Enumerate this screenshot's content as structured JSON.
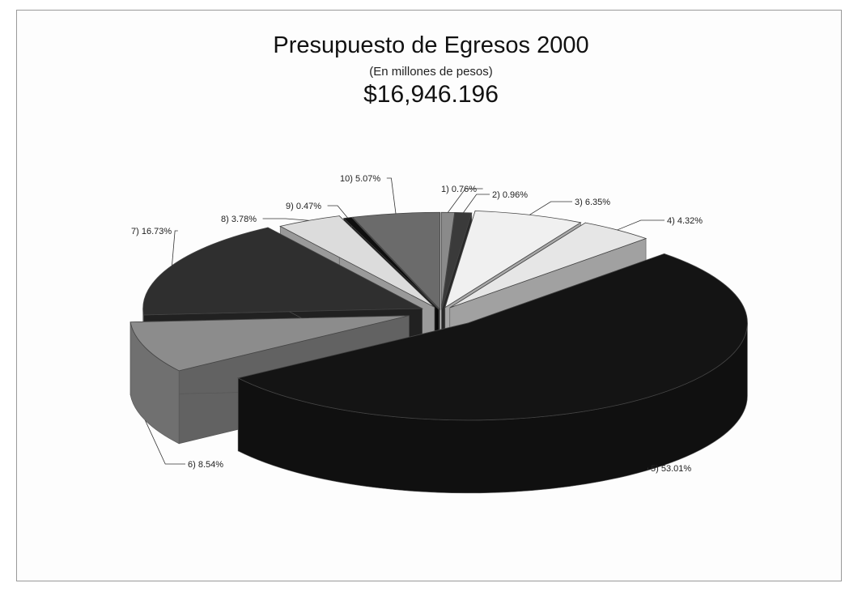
{
  "chart_data": {
    "type": "pie",
    "title": "Presupuesto de Egresos 2000",
    "subtitle": "(En millones de pesos)",
    "total": "$16,946.196",
    "slices": [
      {
        "label": "1) 0.76%",
        "value": 0.76,
        "color": "#8a8a8a"
      },
      {
        "label": "2) 0.96%",
        "value": 0.96,
        "color": "#3a3a3a"
      },
      {
        "label": "3) 6.35%",
        "value": 6.35,
        "color": "#f0f0f0"
      },
      {
        "label": "4) 4.32%",
        "value": 4.32,
        "color": "#e6e6e6"
      },
      {
        "label": "5) 53.01%",
        "value": 53.01,
        "color": "#141414"
      },
      {
        "label": "6) 8.54%",
        "value": 8.54,
        "color": "#8c8c8c"
      },
      {
        "label": "7) 16.73%",
        "value": 16.73,
        "color": "#2f2f2f"
      },
      {
        "label": "8) 3.78%",
        "value": 3.78,
        "color": "#dcdcdc"
      },
      {
        "label": "9) 0.47%",
        "value": 0.47,
        "color": "#0e0e0e"
      },
      {
        "label": "10) 5.07%",
        "value": 5.07,
        "color": "#6b6b6b"
      }
    ]
  }
}
